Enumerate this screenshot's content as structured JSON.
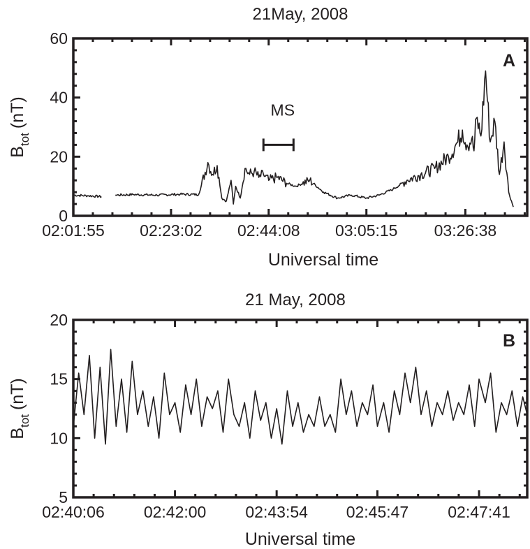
{
  "chart_data": [
    {
      "type": "line",
      "title": "21May, 2008",
      "panel_label": "A",
      "xlabel": "Universal time",
      "ylabel": "B",
      "ylabel_sub": "tot",
      "ylabel_unit": "(nT)",
      "x_ticks": [
        "02:01:55",
        "02:23:02",
        "02:44:08",
        "03:05:15",
        "03:26:38"
      ],
      "y_ticks": [
        "0",
        "20",
        "40",
        "60"
      ],
      "ylim": [
        0,
        60
      ],
      "x_range": [
        "02:01:55",
        "03:40:00"
      ],
      "grid": false,
      "annotation": {
        "text": "MS",
        "start": "02:43:00",
        "end": "02:49:30",
        "y": 24
      },
      "series": [
        {
          "x": [
            "02:01:55",
            "02:05:00",
            "02:08:00",
            "02:09:00",
            "02:11:00",
            "02:15:00",
            "02:20:00",
            "02:25:00",
            "02:29:00",
            "02:31:00",
            "02:32:00",
            "02:33:00",
            "02:34:00",
            "02:35:00",
            "02:36:00",
            "02:36:30",
            "02:37:00",
            "02:38:00",
            "02:39:00",
            "02:40:00",
            "02:41:00",
            "02:42:00",
            "02:43:00",
            "02:44:08",
            "02:46:00",
            "02:48:00",
            "02:50:00",
            "02:53:00",
            "02:56:00",
            "02:59:00",
            "03:02:00",
            "03:05:15",
            "03:08:00",
            "03:11:00",
            "03:14:00",
            "03:17:00",
            "03:20:00",
            "03:23:00",
            "03:25:00",
            "03:26:00",
            "03:27:00",
            "03:28:00",
            "03:28:30",
            "03:29:00",
            "03:30:00",
            "03:31:00",
            "03:32:00",
            "03:33:00",
            "03:34:00",
            "03:35:00",
            "03:36:00",
            "03:37:00"
          ],
          "y": [
            7,
            6.8,
            6.5,
            null,
            7,
            7.2,
            7,
            7.3,
            7.2,
            18,
            14,
            17,
            6,
            5,
            12,
            4,
            10,
            6,
            16,
            14,
            15,
            13,
            14,
            12,
            13,
            11,
            10,
            12,
            8,
            6,
            7,
            6,
            7,
            9,
            12,
            14,
            16,
            20,
            25,
            29,
            24,
            26,
            22,
            33,
            27,
            49,
            25,
            32,
            14,
            25,
            8,
            3
          ]
        }
      ]
    },
    {
      "type": "line",
      "title": "21 May, 2008",
      "panel_label": "B",
      "xlabel": "Universal time",
      "ylabel": "B",
      "ylabel_sub": "tot",
      "ylabel_unit": "(nT)",
      "x_ticks": [
        "02:40:06",
        "02:42:00",
        "02:43:54",
        "02:45:47",
        "02:47:41"
      ],
      "y_ticks": [
        "5",
        "10",
        "15",
        "20"
      ],
      "ylim": [
        5,
        20
      ],
      "x_range": [
        "02:40:06",
        "02:48:35"
      ],
      "grid": false,
      "series": [
        {
          "x": [
            "02:40:06",
            "02:40:12",
            "02:40:18",
            "02:40:24",
            "02:40:30",
            "02:40:36",
            "02:40:42",
            "02:40:48",
            "02:40:54",
            "02:41:00",
            "02:41:06",
            "02:41:12",
            "02:41:18",
            "02:41:24",
            "02:41:30",
            "02:41:36",
            "02:41:42",
            "02:41:48",
            "02:41:54",
            "02:42:00",
            "02:42:06",
            "02:42:12",
            "02:42:18",
            "02:42:24",
            "02:42:30",
            "02:42:36",
            "02:42:42",
            "02:42:48",
            "02:42:54",
            "02:43:00",
            "02:43:06",
            "02:43:12",
            "02:43:18",
            "02:43:24",
            "02:43:30",
            "02:43:36",
            "02:43:42",
            "02:43:48",
            "02:43:54",
            "02:44:00",
            "02:44:06",
            "02:44:12",
            "02:44:18",
            "02:44:24",
            "02:44:30",
            "02:44:36",
            "02:44:42",
            "02:44:48",
            "02:44:54",
            "02:45:00",
            "02:45:06",
            "02:45:12",
            "02:45:18",
            "02:45:24",
            "02:45:30",
            "02:45:36",
            "02:45:42",
            "02:45:47",
            "02:45:54",
            "02:46:00",
            "02:46:06",
            "02:46:12",
            "02:46:18",
            "02:46:24",
            "02:46:30",
            "02:46:36",
            "02:46:42",
            "02:46:48",
            "02:46:54",
            "02:47:00",
            "02:47:06",
            "02:47:12",
            "02:47:18",
            "02:47:24",
            "02:47:30",
            "02:47:36",
            "02:47:41",
            "02:47:48",
            "02:47:54",
            "02:48:00",
            "02:48:06",
            "02:48:12",
            "02:48:18",
            "02:48:24",
            "02:48:30",
            "02:48:35"
          ],
          "y": [
            11,
            15.5,
            12,
            17,
            10,
            16,
            9.5,
            17.5,
            11,
            15,
            10.5,
            16.5,
            12,
            14,
            11,
            13.5,
            10,
            15.5,
            12,
            13,
            10.5,
            14.5,
            12,
            15,
            11,
            13.5,
            12.5,
            14,
            10.5,
            15,
            12,
            11,
            13,
            10,
            14,
            11.5,
            13,
            10,
            12.5,
            9.5,
            14,
            11,
            13,
            10.5,
            12,
            11,
            13.5,
            11,
            12,
            10.5,
            15,
            12,
            14,
            11,
            13,
            12,
            14.5,
            11,
            13,
            10.5,
            14,
            12,
            15.5,
            13,
            16,
            12,
            14,
            11,
            13,
            12,
            14,
            11.5,
            13,
            12,
            14.5,
            11,
            15,
            13,
            15.5,
            10.5,
            13,
            12,
            14,
            11,
            13.5,
            12
          ]
        }
      ]
    }
  ]
}
